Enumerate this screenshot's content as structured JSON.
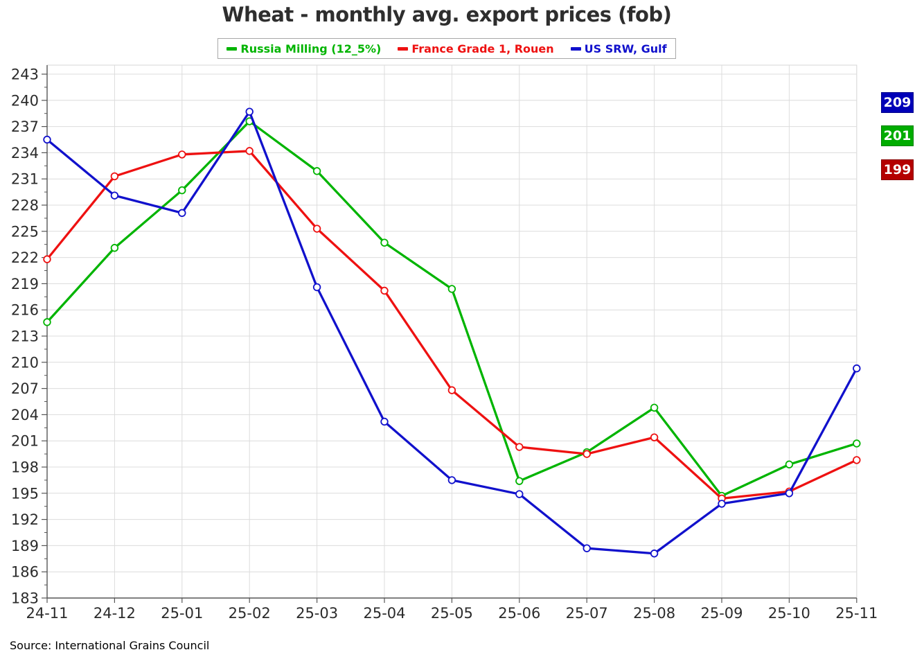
{
  "title": "Wheat - monthly avg. export prices (fob)",
  "source_note": "Source: International Grains Council",
  "legend": {
    "items": [
      {
        "label": "Russia Milling (12_5%)",
        "color": "#00B400"
      },
      {
        "label": "France Grade 1, Rouen",
        "color": "#EE1111"
      },
      {
        "label": "US SRW, Gulf",
        "color": "#1111CC"
      }
    ]
  },
  "end_badges": {
    "items": [
      {
        "value": "209",
        "bg": "#0000B8"
      },
      {
        "value": "201",
        "bg": "#00AC00"
      },
      {
        "value": "199",
        "bg": "#B40000"
      }
    ]
  },
  "chart_data": {
    "type": "line",
    "title": "Wheat - monthly avg. export prices (fob)",
    "xlabel": "",
    "ylabel": "",
    "categories": [
      "24-11",
      "24-12",
      "25-01",
      "25-02",
      "25-03",
      "25-04",
      "25-05",
      "25-06",
      "25-07",
      "25-08",
      "25-09",
      "25-10",
      "25-11"
    ],
    "series": [
      {
        "name": "Russia Milling (12_5%)",
        "color": "#00B400",
        "values": [
          214.6,
          223.1,
          229.7,
          237.6,
          231.9,
          223.7,
          218.4,
          196.4,
          199.7,
          204.8,
          194.7,
          198.3,
          200.7
        ]
      },
      {
        "name": "France Grade 1, Rouen",
        "color": "#EE1111",
        "values": [
          221.8,
          231.3,
          233.8,
          234.2,
          225.3,
          218.2,
          206.8,
          200.3,
          199.5,
          201.4,
          194.4,
          195.2,
          198.8
        ]
      },
      {
        "name": "US SRW, Gulf",
        "color": "#1111CC",
        "values": [
          235.5,
          229.1,
          227.1,
          238.7,
          218.6,
          203.2,
          196.5,
          194.9,
          188.7,
          188.1,
          193.8,
          195.0,
          209.3
        ]
      }
    ],
    "ylim": [
      183,
      243
    ],
    "y_tick_step": 3,
    "y_minor_tick_step": 1.5,
    "grid": true,
    "legend_position": "top",
    "end_value_labels": [
      209,
      201,
      199
    ],
    "marker": "open-circle"
  }
}
